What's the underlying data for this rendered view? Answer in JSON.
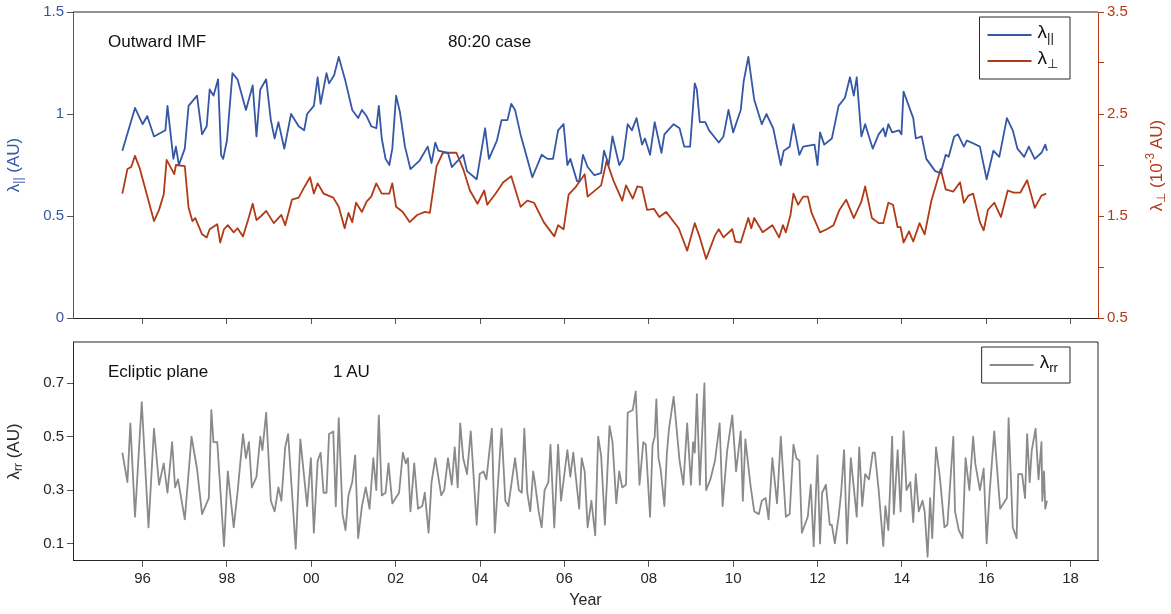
{
  "chart_data": [
    {
      "type": "line",
      "ylabel": "λ$_{||}$ (AU)",
      "y2label": "λ$_{⊥}$ (10$^{-3}$ AU)",
      "xlim": [
        1994.35,
        2018.65
      ],
      "xticks": [
        {
          "value": 1996,
          "label": null
        },
        {
          "value": 1998,
          "label": null
        },
        {
          "value": 2000,
          "label": null
        },
        {
          "value": 2002,
          "label": null
        },
        {
          "value": 2004,
          "label": null
        },
        {
          "value": 2006,
          "label": null
        },
        {
          "value": 2008,
          "label": null
        },
        {
          "value": 2010,
          "label": null
        },
        {
          "value": 2012,
          "label": null
        },
        {
          "value": 2014,
          "label": null
        },
        {
          "value": 2016,
          "label": null
        },
        {
          "value": 2018,
          "label": null
        }
      ],
      "ylim": [
        0,
        1.5
      ],
      "yticks": [
        0,
        0.5,
        1,
        1.5
      ],
      "y2lim": [
        0.5,
        3.5
      ],
      "y2ticks": [
        0.5,
        {
          "value": 1,
          "label": null
        },
        1.5,
        {
          "value": 2,
          "label": null
        },
        2.5,
        {
          "value": 3,
          "label": null
        },
        3.5
      ],
      "tick_labels": "y",
      "legend": "top right",
      "annotations": [
        "Outward IMF",
        "80:20 case"
      ],
      "series": [
        {
          "name": "λ$_{||}$",
          "color": "#3557a6",
          "x": [
            1995.52,
            1995.82,
            1996.0,
            1996.11,
            1996.27,
            1996.54,
            1996.59,
            1996.73,
            1996.79,
            1996.86,
            1997.0,
            1997.09,
            1997.29,
            1997.41,
            1997.52,
            1997.59,
            1997.68,
            1997.79,
            1997.86,
            1997.91,
            1998.0,
            1998.13,
            1998.25,
            1998.45,
            1998.61,
            1998.7,
            1998.79,
            1998.93,
            1999.04,
            1999.13,
            1999.22,
            1999.36,
            1999.52,
            1999.7,
            1999.83,
            1999.9,
            2000.06,
            2000.15,
            2000.22,
            2000.36,
            2000.42,
            2000.54,
            2000.65,
            2000.81,
            2000.97,
            2001.11,
            2001.2,
            2001.31,
            2001.42,
            2001.54,
            2001.6,
            2001.67,
            2001.76,
            2001.85,
            2001.92,
            2002.01,
            2002.1,
            2002.22,
            2002.35,
            2002.56,
            2002.76,
            2002.85,
            2002.94,
            2003.01,
            2003.24,
            2003.33,
            2003.6,
            2003.69,
            2003.92,
            2004.12,
            2004.21,
            2004.4,
            2004.51,
            2004.65,
            2004.74,
            2004.83,
            2004.96,
            2005.08,
            2005.24,
            2005.46,
            2005.6,
            2005.73,
            2005.85,
            2005.98,
            2006.07,
            2006.14,
            2006.3,
            2006.35,
            2006.44,
            2006.55,
            2006.71,
            2006.87,
            2006.94,
            2007.05,
            2007.14,
            2007.3,
            2007.39,
            2007.5,
            2007.6,
            2007.71,
            2007.84,
            2007.91,
            2008.03,
            2008.14,
            2008.3,
            2008.37,
            2008.59,
            2008.73,
            2008.84,
            2008.98,
            2009.09,
            2009.14,
            2009.21,
            2009.34,
            2009.43,
            2009.66,
            2009.77,
            2009.89,
            2010.0,
            2010.18,
            2010.25,
            2010.36,
            2010.5,
            2010.68,
            2010.79,
            2010.95,
            2011.13,
            2011.2,
            2011.34,
            2011.43,
            2011.57,
            2011.66,
            2011.93,
            2012.0,
            2012.06,
            2012.16,
            2012.34,
            2012.5,
            2012.65,
            2012.77,
            2012.86,
            2012.93,
            2013.04,
            2013.13,
            2013.31,
            2013.45,
            2013.56,
            2013.61,
            2013.68,
            2013.77,
            2013.93,
            2013.99,
            2014.04,
            2014.27,
            2014.33,
            2014.47,
            2014.58,
            2014.79,
            2014.92,
            2015.04,
            2015.11,
            2015.24,
            2015.33,
            2015.47,
            2015.54,
            2015.65,
            2015.85,
            2016.01,
            2016.17,
            2016.31,
            2016.49,
            2016.63,
            2016.74,
            2016.9,
            2017.01,
            2017.15,
            2017.31,
            2017.4,
            2017.44
          ],
          "values": [
            0.82,
            1.03,
            0.95,
            0.99,
            0.89,
            0.92,
            1.04,
            0.78,
            0.84,
            0.75,
            0.83,
            1.04,
            1.09,
            0.9,
            0.94,
            1.12,
            1.09,
            1.17,
            0.8,
            0.78,
            0.87,
            1.2,
            1.17,
            1.02,
            1.14,
            0.89,
            1.12,
            1.17,
            0.97,
            0.88,
            0.96,
            0.83,
            1.0,
            0.94,
            0.92,
            1.0,
            1.04,
            1.18,
            1.05,
            1.2,
            1.15,
            1.19,
            1.28,
            1.16,
            1.02,
            0.98,
            1.02,
            0.99,
            0.94,
            0.93,
            1.04,
            0.88,
            0.78,
            0.75,
            0.83,
            1.09,
            1.01,
            0.84,
            0.73,
            0.77,
            0.84,
            0.76,
            0.86,
            0.82,
            0.81,
            0.74,
            0.8,
            0.72,
            0.68,
            0.93,
            0.78,
            0.87,
            0.97,
            0.97,
            1.05,
            1.02,
            0.9,
            0.81,
            0.69,
            0.8,
            0.78,
            0.78,
            0.92,
            0.95,
            0.75,
            0.78,
            0.67,
            0.67,
            0.8,
            0.74,
            0.7,
            0.71,
            0.82,
            0.75,
            0.89,
            0.75,
            0.78,
            0.95,
            0.92,
            0.98,
            0.85,
            0.88,
            0.8,
            0.96,
            0.81,
            0.9,
            0.95,
            0.93,
            0.84,
            0.84,
            1.15,
            1.12,
            0.96,
            0.96,
            0.92,
            0.86,
            0.89,
            1.02,
            0.91,
            1.02,
            1.16,
            1.28,
            1.07,
            0.95,
            1.0,
            0.93,
            0.75,
            0.82,
            0.84,
            0.95,
            0.8,
            0.84,
            0.85,
            0.75,
            0.91,
            0.85,
            0.88,
            1.04,
            1.08,
            1.18,
            1.09,
            1.18,
            0.89,
            0.95,
            0.83,
            0.9,
            0.93,
            0.89,
            0.95,
            0.91,
            0.92,
            0.9,
            1.11,
            0.98,
            0.88,
            0.89,
            0.78,
            0.72,
            0.71,
            0.8,
            0.79,
            0.89,
            0.9,
            0.84,
            0.87,
            0.86,
            0.84,
            0.68,
            0.82,
            0.79,
            0.98,
            0.92,
            0.83,
            0.79,
            0.84,
            0.78,
            0.81,
            0.85,
            0.82
          ]
        },
        {
          "name": "λ$_{⊥}$",
          "color": "#b23a16",
          "axis": "y2",
          "x": [
            1995.52,
            1995.64,
            1995.73,
            1995.82,
            1995.93,
            1996.27,
            1996.39,
            1996.5,
            1996.57,
            1996.75,
            1996.79,
            1997.0,
            1997.09,
            1997.18,
            1997.25,
            1997.41,
            1997.52,
            1997.59,
            1997.77,
            1997.84,
            1997.93,
            1998.02,
            1998.16,
            1998.25,
            1998.38,
            1998.5,
            1998.61,
            1998.7,
            1998.81,
            1998.93,
            1999.11,
            1999.29,
            1999.38,
            1999.54,
            1999.7,
            1999.83,
            1999.97,
            2000.06,
            2000.15,
            2000.29,
            2000.52,
            2000.65,
            2000.79,
            2000.88,
            2000.97,
            2001.06,
            2001.2,
            2001.31,
            2001.42,
            2001.54,
            2001.67,
            2001.85,
            2001.92,
            2002.01,
            2002.17,
            2002.33,
            2002.51,
            2002.69,
            2002.81,
            2002.97,
            2003.12,
            2003.44,
            2003.6,
            2003.76,
            2003.94,
            2004.1,
            2004.17,
            2004.37,
            2004.55,
            2004.74,
            2004.96,
            2005.12,
            2005.28,
            2005.51,
            2005.76,
            2005.85,
            2005.98,
            2006.1,
            2006.26,
            2006.48,
            2006.55,
            2006.87,
            2007.0,
            2007.16,
            2007.37,
            2007.46,
            2007.62,
            2007.73,
            2007.84,
            2007.96,
            2008.12,
            2008.25,
            2008.41,
            2008.71,
            2008.91,
            2009.09,
            2009.21,
            2009.36,
            2009.57,
            2009.66,
            2009.77,
            2009.98,
            2010.05,
            2010.18,
            2010.36,
            2010.43,
            2010.5,
            2010.7,
            2010.93,
            2011.09,
            2011.18,
            2011.25,
            2011.36,
            2011.43,
            2011.54,
            2011.66,
            2011.77,
            2011.86,
            2012.06,
            2012.22,
            2012.38,
            2012.52,
            2012.68,
            2012.86,
            2013.04,
            2013.13,
            2013.29,
            2013.45,
            2013.56,
            2013.68,
            2013.79,
            2013.9,
            2013.97,
            2014.04,
            2014.17,
            2014.27,
            2014.42,
            2014.54,
            2014.7,
            2014.92,
            2015.04,
            2015.22,
            2015.38,
            2015.47,
            2015.58,
            2015.69,
            2015.85,
            2015.94,
            2016.04,
            2016.19,
            2016.35,
            2016.51,
            2016.65,
            2016.81,
            2016.97,
            2017.15,
            2017.31,
            2017.42
          ],
          "values": [
            1.72,
            1.96,
            1.98,
            2.09,
            1.97,
            1.45,
            1.56,
            1.71,
            2.05,
            1.91,
            2.0,
            1.99,
            1.58,
            1.45,
            1.48,
            1.32,
            1.29,
            1.37,
            1.42,
            1.24,
            1.37,
            1.41,
            1.34,
            1.38,
            1.3,
            1.46,
            1.62,
            1.46,
            1.5,
            1.55,
            1.43,
            1.51,
            1.41,
            1.66,
            1.68,
            1.78,
            1.88,
            1.72,
            1.82,
            1.72,
            1.68,
            1.59,
            1.38,
            1.53,
            1.44,
            1.63,
            1.54,
            1.64,
            1.69,
            1.82,
            1.72,
            1.72,
            1.82,
            1.59,
            1.54,
            1.44,
            1.51,
            1.54,
            1.53,
            1.99,
            2.12,
            2.12,
            1.96,
            1.75,
            1.62,
            1.75,
            1.61,
            1.72,
            1.83,
            1.89,
            1.59,
            1.65,
            1.63,
            1.44,
            1.3,
            1.41,
            1.37,
            1.71,
            1.78,
            1.91,
            1.69,
            1.8,
            2.04,
            1.85,
            1.65,
            1.8,
            1.67,
            1.79,
            1.78,
            1.56,
            1.57,
            1.49,
            1.54,
            1.38,
            1.16,
            1.43,
            1.29,
            1.08,
            1.31,
            1.37,
            1.29,
            1.37,
            1.25,
            1.24,
            1.48,
            1.38,
            1.48,
            1.34,
            1.41,
            1.29,
            1.41,
            1.34,
            1.51,
            1.72,
            1.61,
            1.69,
            1.69,
            1.53,
            1.34,
            1.37,
            1.41,
            1.56,
            1.66,
            1.48,
            1.64,
            1.79,
            1.48,
            1.43,
            1.43,
            1.63,
            1.61,
            1.39,
            1.39,
            1.24,
            1.35,
            1.25,
            1.43,
            1.32,
            1.65,
            1.96,
            1.76,
            1.74,
            1.83,
            1.63,
            1.7,
            1.72,
            1.44,
            1.36,
            1.56,
            1.63,
            1.49,
            1.75,
            1.73,
            1.73,
            1.85,
            1.58,
            1.7,
            1.72
          ]
        }
      ]
    },
    {
      "type": "line",
      "xlabel": "Year",
      "ylabel": "λ$_{rr}$ (AU)",
      "xlim": [
        1994.35,
        2018.65
      ],
      "xticks": [
        {
          "value": 1996,
          "label": "96"
        },
        {
          "value": 1998,
          "label": "98"
        },
        {
          "value": 2000,
          "label": "00"
        },
        {
          "value": 2002,
          "label": "02"
        },
        {
          "value": 2004,
          "label": "04"
        },
        {
          "value": 2006,
          "label": "06"
        },
        {
          "value": 2008,
          "label": "08"
        },
        {
          "value": 2010,
          "label": "10"
        },
        {
          "value": 2012,
          "label": "12"
        },
        {
          "value": 2014,
          "label": "14"
        },
        {
          "value": 2016,
          "label": "16"
        },
        {
          "value": 2018,
          "label": "18"
        }
      ],
      "ylim": [
        0.035,
        0.855
      ],
      "yticks": [
        0.1,
        0.3,
        0.5,
        0.7
      ],
      "legend": "top right",
      "annotations": [
        "Ecliptic plane",
        "1 AU"
      ],
      "series": [
        {
          "name": "λ$_{rr}$",
          "color": "#8a8a8a",
          "x": [
            1995.52,
            1995.64,
            1995.71,
            1995.82,
            1995.98,
            1996.14,
            1996.27,
            1996.39,
            1996.5,
            1996.59,
            1996.7,
            1996.77,
            1996.84,
            1997.0,
            1997.16,
            1997.29,
            1997.41,
            1997.57,
            1997.63,
            1997.68,
            1997.77,
            1997.93,
            1998.02,
            1998.16,
            1998.25,
            1998.38,
            1998.45,
            1998.52,
            1998.59,
            1998.7,
            1998.79,
            1998.84,
            1998.93,
            1999.04,
            1999.13,
            1999.22,
            1999.29,
            1999.38,
            1999.45,
            1999.63,
            1999.74,
            1999.9,
            1999.99,
            2000.06,
            2000.15,
            2000.22,
            2000.29,
            2000.36,
            2000.42,
            2000.52,
            2000.58,
            2000.65,
            2000.74,
            2000.81,
            2000.88,
            2000.97,
            2001.04,
            2001.11,
            2001.2,
            2001.29,
            2001.38,
            2001.47,
            2001.54,
            2001.6,
            2001.67,
            2001.76,
            2001.83,
            2001.92,
            2002.08,
            2002.17,
            2002.24,
            2002.29,
            2002.35,
            2002.44,
            2002.53,
            2002.63,
            2002.69,
            2002.78,
            2002.85,
            2002.94,
            2003.08,
            2003.15,
            2003.24,
            2003.33,
            2003.4,
            2003.47,
            2003.53,
            2003.6,
            2003.69,
            2003.78,
            2003.92,
            2003.99,
            2004.08,
            2004.15,
            2004.28,
            2004.35,
            2004.51,
            2004.6,
            2004.67,
            2004.83,
            2004.92,
            2004.99,
            2005.05,
            2005.12,
            2005.19,
            2005.26,
            2005.3,
            2005.39,
            2005.46,
            2005.53,
            2005.62,
            2005.67,
            2005.76,
            2005.85,
            2005.92,
            2006.07,
            2006.14,
            2006.21,
            2006.35,
            2006.41,
            2006.48,
            2006.55,
            2006.64,
            2006.73,
            2006.8,
            2006.87,
            2006.96,
            2007.07,
            2007.14,
            2007.23,
            2007.3,
            2007.37,
            2007.46,
            2007.5,
            2007.62,
            2007.69,
            2007.78,
            2007.87,
            2007.93,
            2008.03,
            2008.09,
            2008.14,
            2008.18,
            2008.23,
            2008.28,
            2008.37,
            2008.43,
            2008.48,
            2008.59,
            2008.73,
            2008.82,
            2008.91,
            2009.0,
            2009.05,
            2009.09,
            2009.14,
            2009.21,
            2009.32,
            2009.36,
            2009.46,
            2009.57,
            2009.68,
            2009.75,
            2009.86,
            2009.98,
            2010.07,
            2010.18,
            2010.23,
            2010.29,
            2010.41,
            2010.5,
            2010.61,
            2010.68,
            2010.77,
            2010.84,
            2010.93,
            2011.04,
            2011.13,
            2011.25,
            2011.34,
            2011.43,
            2011.5,
            2011.57,
            2011.63,
            2011.77,
            2011.84,
            2011.91,
            2012.0,
            2012.06,
            2012.11,
            2012.2,
            2012.29,
            2012.34,
            2012.41,
            2012.5,
            2012.56,
            2012.63,
            2012.7,
            2012.79,
            2012.93,
            2012.99,
            2013.06,
            2013.13,
            2013.22,
            2013.31,
            2013.36,
            2013.45,
            2013.56,
            2013.61,
            2013.68,
            2013.77,
            2013.81,
            2013.9,
            2013.97,
            2014.04,
            2014.11,
            2014.2,
            2014.27,
            2014.33,
            2014.4,
            2014.49,
            2014.54,
            2014.61,
            2014.67,
            2014.72,
            2014.81,
            2014.9,
            2015.01,
            2015.08,
            2015.22,
            2015.26,
            2015.35,
            2015.44,
            2015.51,
            2015.6,
            2015.69,
            2015.74,
            2015.85,
            2015.94,
            2016.01,
            2016.08,
            2016.19,
            2016.33,
            2016.49,
            2016.53,
            2016.63,
            2016.72,
            2016.76,
            2016.85,
            2016.92,
            2016.97,
            2017.03,
            2017.08,
            2017.17,
            2017.24,
            2017.31,
            2017.33,
            2017.37,
            2017.4,
            2017.44
          ],
          "values": [
            0.44,
            0.33,
            0.55,
            0.2,
            0.63,
            0.16,
            0.53,
            0.32,
            0.4,
            0.29,
            0.48,
            0.31,
            0.34,
            0.19,
            0.5,
            0.38,
            0.21,
            0.27,
            0.6,
            0.48,
            0.48,
            0.09,
            0.37,
            0.16,
            0.29,
            0.51,
            0.42,
            0.48,
            0.31,
            0.35,
            0.5,
            0.45,
            0.59,
            0.26,
            0.22,
            0.31,
            0.26,
            0.46,
            0.51,
            0.08,
            0.49,
            0.24,
            0.42,
            0.14,
            0.41,
            0.44,
            0.29,
            0.29,
            0.51,
            0.52,
            0.24,
            0.57,
            0.21,
            0.15,
            0.28,
            0.33,
            0.43,
            0.12,
            0.24,
            0.31,
            0.23,
            0.42,
            0.3,
            0.58,
            0.28,
            0.29,
            0.4,
            0.25,
            0.29,
            0.44,
            0.4,
            0.42,
            0.22,
            0.4,
            0.23,
            0.24,
            0.29,
            0.14,
            0.33,
            0.42,
            0.28,
            0.3,
            0.42,
            0.32,
            0.46,
            0.31,
            0.55,
            0.42,
            0.36,
            0.52,
            0.17,
            0.36,
            0.37,
            0.34,
            0.53,
            0.14,
            0.53,
            0.26,
            0.24,
            0.42,
            0.3,
            0.29,
            0.53,
            0.29,
            0.22,
            0.37,
            0.33,
            0.22,
            0.16,
            0.3,
            0.33,
            0.47,
            0.16,
            0.47,
            0.26,
            0.45,
            0.35,
            0.44,
            0.23,
            0.42,
            0.37,
            0.16,
            0.26,
            0.13,
            0.5,
            0.43,
            0.17,
            0.54,
            0.48,
            0.25,
            0.37,
            0.31,
            0.32,
            0.59,
            0.6,
            0.67,
            0.32,
            0.48,
            0.47,
            0.2,
            0.47,
            0.5,
            0.64,
            0.42,
            0.38,
            0.24,
            0.44,
            0.53,
            0.65,
            0.41,
            0.32,
            0.55,
            0.32,
            0.48,
            0.44,
            0.66,
            0.32,
            0.7,
            0.3,
            0.34,
            0.41,
            0.55,
            0.24,
            0.45,
            0.58,
            0.37,
            0.52,
            0.26,
            0.49,
            0.32,
            0.22,
            0.21,
            0.26,
            0.27,
            0.19,
            0.42,
            0.25,
            0.5,
            0.2,
            0.21,
            0.47,
            0.42,
            0.41,
            0.14,
            0.2,
            0.32,
            0.09,
            0.43,
            0.1,
            0.29,
            0.32,
            0.17,
            0.17,
            0.1,
            0.2,
            0.29,
            0.45,
            0.1,
            0.42,
            0.2,
            0.46,
            0.24,
            0.36,
            0.34,
            0.44,
            0.44,
            0.3,
            0.09,
            0.24,
            0.15,
            0.5,
            0.21,
            0.45,
            0.22,
            0.52,
            0.3,
            0.33,
            0.18,
            0.36,
            0.22,
            0.26,
            0.22,
            0.05,
            0.27,
            0.12,
            0.46,
            0.35,
            0.16,
            0.17,
            0.5,
            0.22,
            0.15,
            0.12,
            0.42,
            0.3,
            0.5,
            0.4,
            0.3,
            0.38,
            0.1,
            0.29,
            0.52,
            0.23,
            0.27,
            0.57,
            0.16,
            0.12,
            0.36,
            0.36,
            0.27,
            0.51,
            0.33,
            0.45,
            0.53,
            0.34,
            0.48,
            0.26,
            0.37,
            0.23,
            0.26
          ]
        }
      ]
    }
  ]
}
